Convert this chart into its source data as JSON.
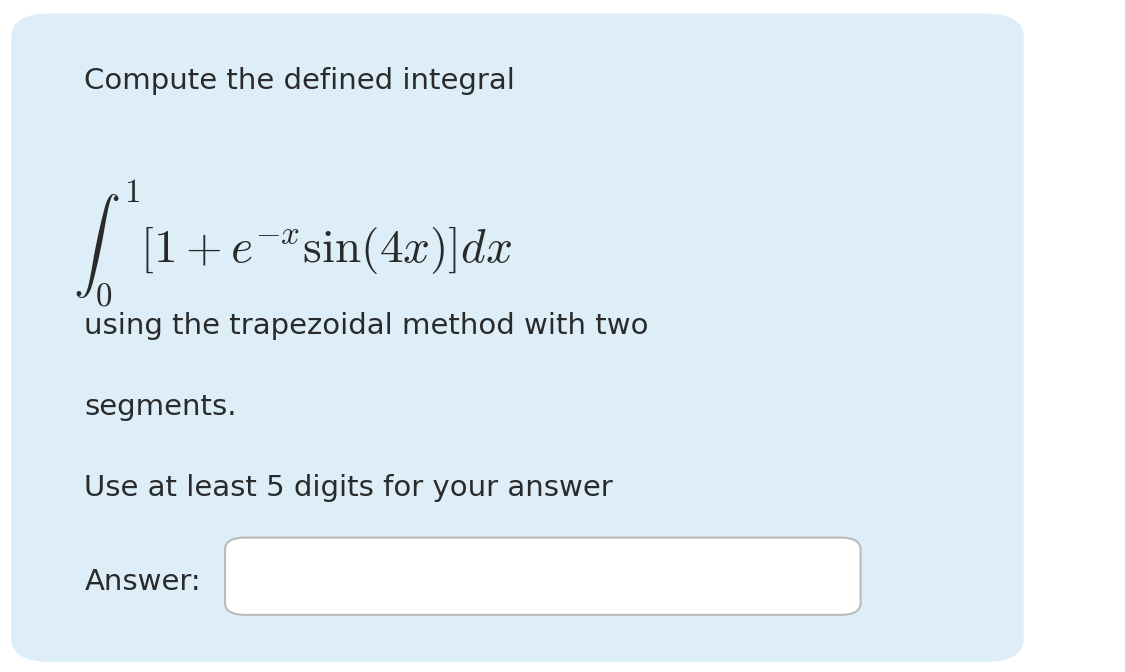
{
  "background_color": "#ffffff",
  "card_color": "#ddeef8",
  "card_border_color": "#c0d8ea",
  "text_color": "#2a2a2a",
  "line1": "Compute the defined integral",
  "line2_plain": "using the trapezoidal method with two",
  "line3_plain": "segments.",
  "line4_plain": "Use at least 5 digits for your answer",
  "line5_plain": "Answer:",
  "answer_box_color": "#ffffff",
  "answer_box_border": "#bbbbbb",
  "text_fontsize": 21,
  "math_fontsize": 34
}
